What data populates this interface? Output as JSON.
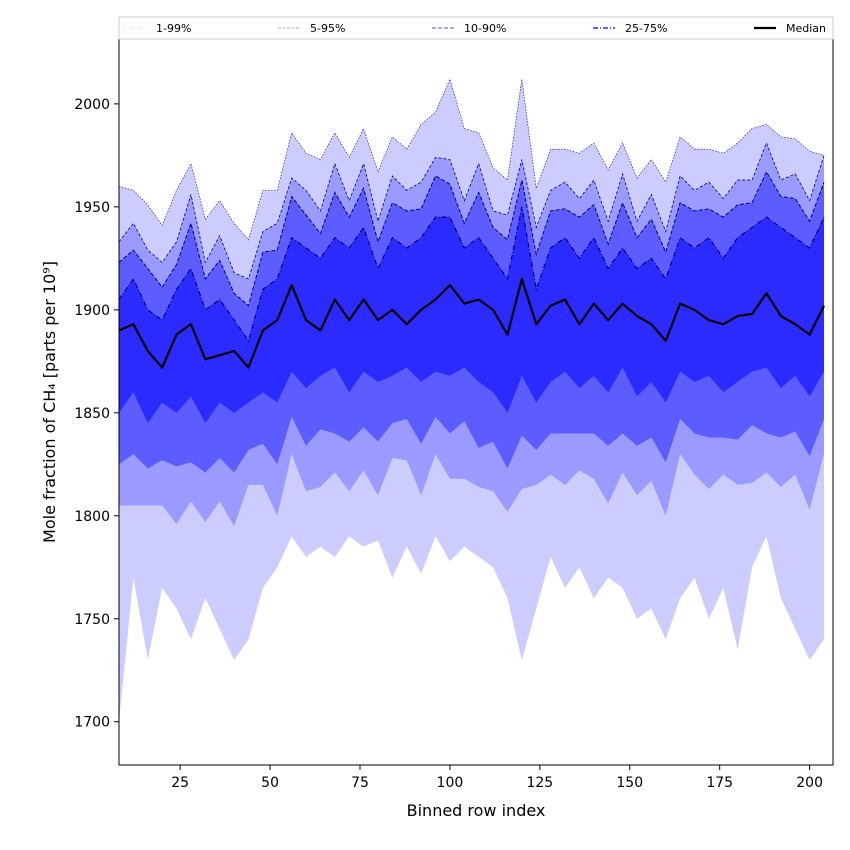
{
  "chart_data": {
    "type": "area",
    "title": "",
    "xlabel": "Binned row index",
    "ylabel": "Mole fraction of CH₄ [parts per 10⁹]",
    "xlim": [
      8,
      206.5
    ],
    "ylim": [
      1679,
      2031.5
    ],
    "xticks": [
      25,
      50,
      75,
      100,
      125,
      150,
      175,
      200
    ],
    "yticks": [
      1700,
      1750,
      1800,
      1850,
      1900,
      1950,
      2000
    ],
    "grid": false,
    "legend": {
      "placement": "top (above axes, single row)",
      "entries": [
        "1-99%",
        "5-95%",
        "10-90%",
        "25-75%",
        "Median"
      ]
    },
    "colors": {
      "band_1_99": "#ccccff",
      "band_5_95": "#9a9aff",
      "band_10_90": "#5c5cff",
      "band_25_75": "#2b2bff",
      "edge": "#00008b",
      "median": "#000000"
    },
    "x": [
      8,
      12,
      16,
      20,
      24,
      28,
      32,
      36,
      40,
      44,
      48,
      52,
      56,
      60,
      64,
      68,
      72,
      76,
      80,
      84,
      88,
      92,
      96,
      100,
      104,
      108,
      112,
      116,
      120,
      124,
      128,
      132,
      136,
      140,
      144,
      148,
      152,
      156,
      160,
      164,
      168,
      172,
      176,
      180,
      184,
      188,
      192,
      196,
      200,
      204
    ],
    "series": [
      {
        "name": "p1",
        "values": [
          1700,
          1770,
          1730,
          1765,
          1755,
          1740,
          1760,
          1745,
          1730,
          1740,
          1765,
          1775,
          1790,
          1780,
          1785,
          1780,
          1790,
          1785,
          1788,
          1770,
          1785,
          1772,
          1790,
          1778,
          1785,
          1780,
          1775,
          1760,
          1730,
          1755,
          1780,
          1765,
          1775,
          1760,
          1770,
          1765,
          1750,
          1755,
          1740,
          1760,
          1770,
          1750,
          1765,
          1735,
          1775,
          1790,
          1760,
          1745,
          1730,
          1740
        ]
      },
      {
        "name": "p5",
        "values": [
          1805,
          1805,
          1805,
          1805,
          1796,
          1807,
          1797,
          1807,
          1795,
          1815,
          1815,
          1800,
          1830,
          1812,
          1814,
          1821,
          1812,
          1822,
          1810,
          1828,
          1827,
          1810,
          1830,
          1818,
          1818,
          1814,
          1812,
          1802,
          1813,
          1815,
          1820,
          1815,
          1822,
          1818,
          1806,
          1821,
          1810,
          1817,
          1800,
          1830,
          1820,
          1813,
          1820,
          1815,
          1816,
          1821,
          1814,
          1820,
          1803,
          1830
        ]
      },
      {
        "name": "p10",
        "values": [
          1825,
          1830,
          1823,
          1827,
          1824,
          1826,
          1821,
          1828,
          1821,
          1832,
          1835,
          1825,
          1848,
          1834,
          1842,
          1840,
          1836,
          1843,
          1836,
          1845,
          1847,
          1835,
          1848,
          1840,
          1846,
          1833,
          1836,
          1823,
          1839,
          1832,
          1840,
          1840,
          1840,
          1840,
          1834,
          1840,
          1834,
          1838,
          1826,
          1847,
          1840,
          1838,
          1838,
          1837,
          1844,
          1840,
          1838,
          1841,
          1829,
          1847
        ]
      },
      {
        "name": "p25",
        "values": [
          1850,
          1860,
          1845,
          1855,
          1850,
          1858,
          1845,
          1855,
          1850,
          1855,
          1860,
          1855,
          1870,
          1862,
          1868,
          1872,
          1860,
          1870,
          1865,
          1868,
          1872,
          1865,
          1870,
          1868,
          1872,
          1865,
          1860,
          1850,
          1868,
          1855,
          1865,
          1870,
          1862,
          1868,
          1860,
          1872,
          1858,
          1865,
          1855,
          1870,
          1865,
          1868,
          1860,
          1865,
          1870,
          1872,
          1862,
          1868,
          1858,
          1870
        ]
      },
      {
        "name": "Median",
        "values": [
          1890,
          1893,
          1880,
          1872,
          1888,
          1893,
          1876,
          1878,
          1880,
          1872,
          1890,
          1895,
          1912,
          1895,
          1890,
          1905,
          1895,
          1905,
          1895,
          1900,
          1893,
          1900,
          1905,
          1912,
          1903,
          1905,
          1900,
          1888,
          1915,
          1893,
          1902,
          1905,
          1893,
          1903,
          1895,
          1903,
          1897,
          1893,
          1885,
          1903,
          1900,
          1895,
          1893,
          1897,
          1898,
          1908,
          1897,
          1893,
          1888,
          1902
        ]
      },
      {
        "name": "p75",
        "values": [
          1905,
          1915,
          1900,
          1895,
          1910,
          1920,
          1900,
          1905,
          1895,
          1885,
          1910,
          1915,
          1935,
          1930,
          1925,
          1935,
          1930,
          1940,
          1920,
          1935,
          1930,
          1935,
          1945,
          1945,
          1930,
          1935,
          1925,
          1915,
          1950,
          1910,
          1930,
          1935,
          1925,
          1935,
          1920,
          1930,
          1920,
          1925,
          1915,
          1935,
          1930,
          1935,
          1925,
          1935,
          1940,
          1945,
          1940,
          1935,
          1930,
          1945
        ]
      },
      {
        "name": "p90",
        "values": [
          1923,
          1929,
          1920,
          1911,
          1922,
          1942,
          1915,
          1924,
          1908,
          1902,
          1928,
          1929,
          1955,
          1946,
          1937,
          1957,
          1945,
          1959,
          1933,
          1952,
          1948,
          1949,
          1965,
          1961,
          1942,
          1957,
          1940,
          1934,
          1963,
          1927,
          1948,
          1949,
          1945,
          1951,
          1932,
          1952,
          1935,
          1944,
          1928,
          1952,
          1948,
          1949,
          1945,
          1951,
          1952,
          1967,
          1955,
          1954,
          1943,
          1962
        ]
      },
      {
        "name": "p95",
        "values": [
          1933,
          1942,
          1929,
          1923,
          1933,
          1956,
          1923,
          1936,
          1918,
          1915,
          1938,
          1942,
          1964,
          1958,
          1948,
          1971,
          1953,
          1971,
          1943,
          1965,
          1958,
          1962,
          1974,
          1973,
          1953,
          1971,
          1948,
          1946,
          1973,
          1940,
          1958,
          1962,
          1954,
          1963,
          1943,
          1966,
          1943,
          1956,
          1938,
          1965,
          1958,
          1962,
          1954,
          1963,
          1963,
          1981,
          1963,
          1966,
          1953,
          1975
        ]
      },
      {
        "name": "p99",
        "values": [
          1960,
          1958,
          1951,
          1941,
          1958,
          1971,
          1944,
          1953,
          1942,
          1934,
          1958,
          1958,
          1986,
          1976,
          1973,
          1986,
          1974,
          1988,
          1967,
          1984,
          1978,
          1990,
          1996,
          2012,
          1988,
          1986,
          1969,
          1963,
          2012,
          1959,
          1978,
          1978,
          1976,
          1981,
          1968,
          1981,
          1964,
          1973,
          1962,
          1984,
          1978,
          1978,
          1976,
          1981,
          1988,
          1990,
          1984,
          1983,
          1977,
          1975
        ]
      }
    ]
  }
}
